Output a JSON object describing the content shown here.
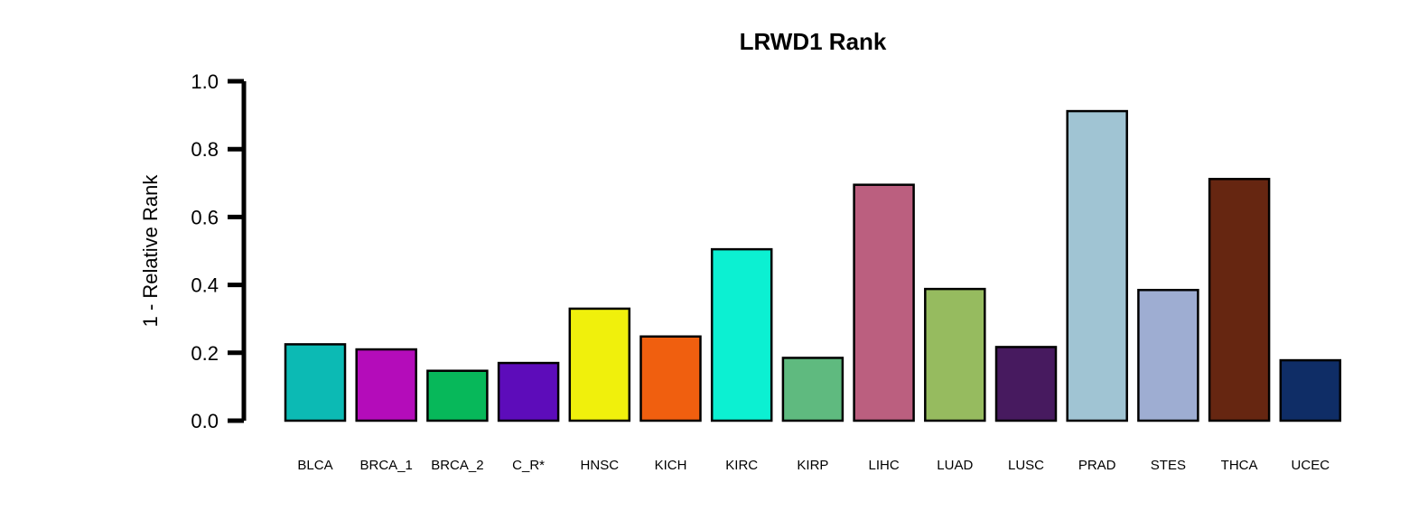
{
  "chart_data": {
    "type": "bar",
    "title": "LRWD1 Rank",
    "xlabel": "",
    "ylabel": "1 - Relative Rank",
    "ylim": [
      0,
      1
    ],
    "yticks": [
      0,
      0.2,
      0.4,
      0.6,
      0.8,
      1
    ],
    "ytick_labels": [
      "0.0",
      "0.2",
      "0.4",
      "0.6",
      "0.8",
      "1.0"
    ],
    "grid": false,
    "legend": "none",
    "categories": [
      "BLCA",
      "BRCA_1",
      "BRCA_2",
      "C_R*",
      "HNSC",
      "KICH",
      "KIRC",
      "KIRP",
      "LIHC",
      "LUAD",
      "LUSC",
      "PRAD",
      "STES",
      "THCA",
      "UCEC"
    ],
    "values": [
      0.225,
      0.21,
      0.147,
      0.17,
      0.33,
      0.248,
      0.505,
      0.185,
      0.695,
      0.388,
      0.217,
      0.912,
      0.385,
      0.712,
      0.178
    ],
    "colors": [
      "#0cbab4",
      "#b40cba",
      "#07b85a",
      "#5d0cba",
      "#f0f00c",
      "#f05f0f",
      "#0cf0d2",
      "#5fba7f",
      "#bb5f7f",
      "#96bb5f",
      "#471a5f",
      "#a0c4d3",
      "#9eadd2",
      "#662611",
      "#0f2d66"
    ]
  }
}
